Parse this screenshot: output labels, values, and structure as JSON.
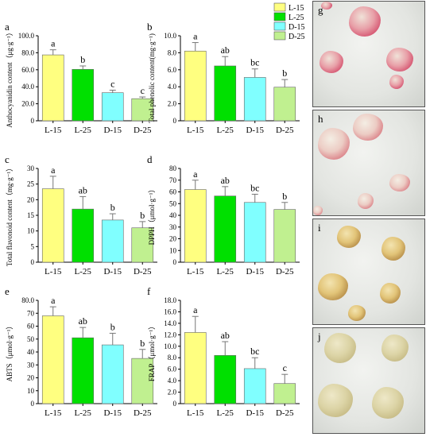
{
  "legend": {
    "items": [
      {
        "label": "L-15",
        "color": "#ffff80"
      },
      {
        "label": "L-25",
        "color": "#00e000"
      },
      {
        "label": "D-15",
        "color": "#80ffff"
      },
      {
        "label": "D-25",
        "color": "#c0f090"
      }
    ]
  },
  "chart_data": [
    {
      "type": "bar",
      "panel": "a",
      "ylabel": "Anthocyanidin content（μg·g⁻¹）",
      "categories": [
        "L-15",
        "L-25",
        "D-15",
        "D-25"
      ],
      "values": [
        77.5,
        60.5,
        33.0,
        26.0
      ],
      "errors": [
        6,
        4,
        3,
        2
      ],
      "letters": [
        "a",
        "b",
        "c",
        "c"
      ],
      "ylim": [
        0,
        100
      ],
      "yticks": [
        0,
        20,
        40,
        60,
        80,
        100
      ],
      "ytick_labels": [
        "0",
        "20.0",
        "40.0",
        "60.0",
        "80.0",
        "100.0"
      ]
    },
    {
      "type": "bar",
      "panel": "b",
      "ylabel": "Total phenolic content(mg·g⁻¹)",
      "categories": [
        "L-15",
        "L-25",
        "D-15",
        "D-25"
      ],
      "values": [
        8.2,
        6.45,
        5.1,
        3.95
      ],
      "errors": [
        1.0,
        1.1,
        1.0,
        0.9
      ],
      "letters": [
        "a",
        "ab",
        "bc",
        "b"
      ],
      "ylim": [
        0,
        10
      ],
      "yticks": [
        0,
        2,
        4,
        6,
        8,
        10
      ],
      "ytick_labels": [
        "0",
        "2.0",
        "4.0",
        "6.0",
        "8.0",
        "10.0"
      ]
    },
    {
      "type": "bar",
      "panel": "c",
      "ylabel": "Total flavonoid content（mg·g⁻¹）",
      "categories": [
        "L-15",
        "L-25",
        "D-15",
        "D-25"
      ],
      "values": [
        23.5,
        17.0,
        13.5,
        11.0
      ],
      "errors": [
        4,
        4,
        2,
        2
      ],
      "letters": [
        "a",
        "ab",
        "b",
        "b"
      ],
      "ylim": [
        0,
        30
      ],
      "yticks": [
        0,
        5,
        10,
        15,
        20,
        25,
        30
      ],
      "ytick_labels": [
        "0",
        "5",
        "10",
        "15",
        "20",
        "25",
        "30"
      ]
    },
    {
      "type": "bar",
      "panel": "d",
      "ylabel": "DPPH（μmol·g⁻¹）",
      "categories": [
        "L-15",
        "L-25",
        "D-15",
        "D-25"
      ],
      "values": [
        62.0,
        56.5,
        51.0,
        45.0
      ],
      "errors": [
        8,
        8,
        7,
        6
      ],
      "letters": [
        "a",
        "ab",
        "bc",
        "b"
      ],
      "ylim": [
        0,
        80
      ],
      "yticks": [
        0,
        10,
        20,
        30,
        40,
        50,
        60,
        70,
        80
      ],
      "ytick_labels": [
        "0",
        "10",
        "20",
        "30",
        "40",
        "50",
        "60",
        "70",
        "80"
      ]
    },
    {
      "type": "bar",
      "panel": "e",
      "ylabel": "ABTS（μmol·g⁻¹）",
      "categories": [
        "L-15",
        "L-25",
        "D-15",
        "D-25"
      ],
      "values": [
        68.0,
        51.0,
        45.5,
        35.0
      ],
      "errors": [
        7,
        8,
        9,
        7
      ],
      "letters": [
        "a",
        "ab",
        "b",
        "b"
      ],
      "ylim": [
        0,
        80
      ],
      "yticks": [
        0,
        10,
        20,
        30,
        40,
        50,
        60,
        70,
        80
      ],
      "ytick_labels": [
        "0",
        "10",
        "20",
        "30",
        "40",
        "50",
        "60",
        "70",
        "80.0"
      ]
    },
    {
      "type": "bar",
      "panel": "f",
      "ylabel": "FRAP（μmol·g⁻¹）",
      "categories": [
        "L-15",
        "L-25",
        "D-15",
        "D-25"
      ],
      "values": [
        12.4,
        8.4,
        6.1,
        3.5
      ],
      "errors": [
        2.8,
        2.4,
        1.9,
        1.6
      ],
      "letters": [
        "a",
        "ab",
        "bc",
        "c"
      ],
      "ylim": [
        0,
        18
      ],
      "yticks": [
        0,
        2,
        4,
        6,
        8,
        10,
        12,
        14,
        16,
        18
      ],
      "ytick_labels": [
        "0",
        "2.0",
        "4.0",
        "6.0",
        "8.0",
        "10.0",
        "12.0",
        "14.0",
        "16.0",
        "18.0"
      ]
    }
  ],
  "photos": [
    {
      "letter": "g",
      "tone": "red"
    },
    {
      "letter": "h",
      "tone": "red-pale"
    },
    {
      "letter": "i",
      "tone": "yellow-brown"
    },
    {
      "letter": "j",
      "tone": "pale-yellow"
    }
  ]
}
